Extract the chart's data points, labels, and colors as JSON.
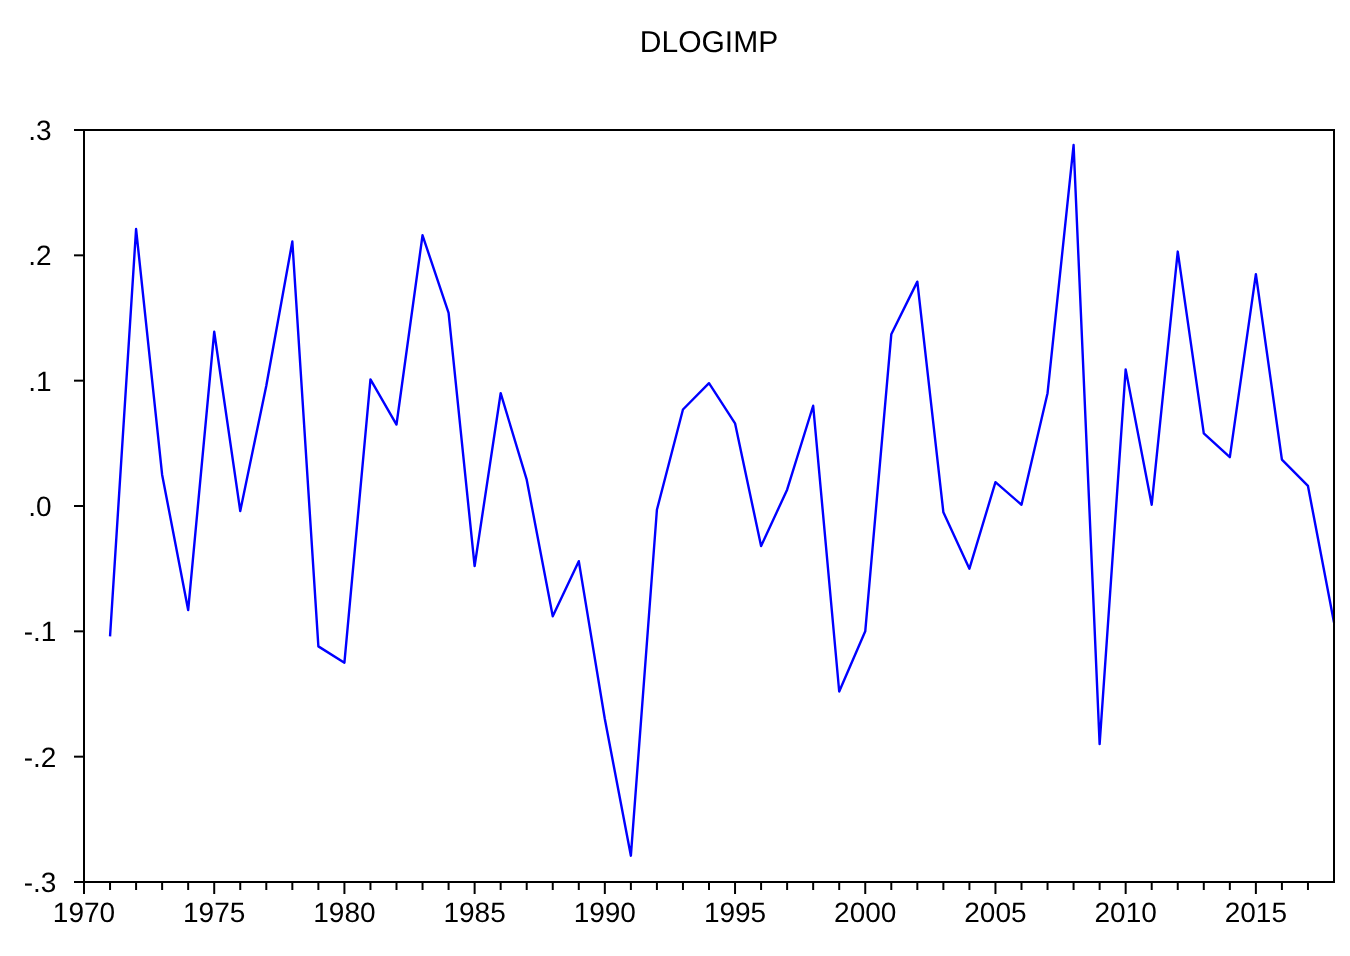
{
  "chart_data": {
    "type": "line",
    "title": "DLOGIMP",
    "x": [
      1971,
      1972,
      1973,
      1974,
      1975,
      1976,
      1977,
      1978,
      1979,
      1980,
      1981,
      1982,
      1983,
      1984,
      1985,
      1986,
      1987,
      1988,
      1989,
      1990,
      1991,
      1992,
      1993,
      1994,
      1995,
      1996,
      1997,
      1998,
      1999,
      2000,
      2001,
      2002,
      2003,
      2004,
      2005,
      2006,
      2007,
      2008,
      2009,
      2010,
      2011,
      2012,
      2013,
      2014,
      2015,
      2016,
      2017,
      2018
    ],
    "series": [
      {
        "color": "#0000ff",
        "values": [
          -0.104,
          0.221,
          0.025,
          -0.083,
          0.139,
          -0.004,
          0.096,
          0.211,
          -0.112,
          -0.125,
          0.101,
          0.065,
          0.216,
          0.154,
          -0.048,
          0.09,
          0.021,
          -0.088,
          -0.044,
          -0.17,
          -0.279,
          -0.003,
          0.077,
          0.098,
          0.066,
          -0.032,
          0.013,
          0.08,
          -0.148,
          -0.1,
          0.137,
          0.179,
          -0.005,
          -0.05,
          0.019,
          0.001,
          0.09,
          0.288,
          -0.19,
          0.109,
          0.001,
          0.203,
          0.058,
          0.039,
          0.185,
          0.037,
          0.016,
          -0.093
        ]
      }
    ],
    "xlim": [
      1970,
      2018
    ],
    "xticks": [
      1970,
      {
        "value": 1971,
        "label": null
      },
      {
        "value": 1972,
        "label": null
      },
      {
        "value": 1973,
        "label": null
      },
      {
        "value": 1974,
        "label": null
      },
      1975,
      {
        "value": 1976,
        "label": null
      },
      {
        "value": 1977,
        "label": null
      },
      {
        "value": 1978,
        "label": null
      },
      {
        "value": 1979,
        "label": null
      },
      1980,
      {
        "value": 1981,
        "label": null
      },
      {
        "value": 1982,
        "label": null
      },
      {
        "value": 1983,
        "label": null
      },
      {
        "value": 1984,
        "label": null
      },
      1985,
      {
        "value": 1986,
        "label": null
      },
      {
        "value": 1987,
        "label": null
      },
      {
        "value": 1988,
        "label": null
      },
      {
        "value": 1989,
        "label": null
      },
      1990,
      {
        "value": 1991,
        "label": null
      },
      {
        "value": 1992,
        "label": null
      },
      {
        "value": 1993,
        "label": null
      },
      {
        "value": 1994,
        "label": null
      },
      1995,
      {
        "value": 1996,
        "label": null
      },
      {
        "value": 1997,
        "label": null
      },
      {
        "value": 1998,
        "label": null
      },
      {
        "value": 1999,
        "label": null
      },
      2000,
      {
        "value": 2001,
        "label": null
      },
      {
        "value": 2002,
        "label": null
      },
      {
        "value": 2003,
        "label": null
      },
      {
        "value": 2004,
        "label": null
      },
      2005,
      {
        "value": 2006,
        "label": null
      },
      {
        "value": 2007,
        "label": null
      },
      {
        "value": 2008,
        "label": null
      },
      {
        "value": 2009,
        "label": null
      },
      2010,
      {
        "value": 2011,
        "label": null
      },
      {
        "value": 2012,
        "label": null
      },
      {
        "value": 2013,
        "label": null
      },
      {
        "value": 2014,
        "label": null
      },
      2015,
      {
        "value": 2016,
        "label": null
      },
      {
        "value": 2017,
        "label": null
      }
    ],
    "ylim": [
      -0.3,
      0.3
    ],
    "yticks": [
      {
        "value": -0.3,
        "label": "-.3"
      },
      {
        "value": -0.2,
        "label": "-.2"
      },
      {
        "value": -0.1,
        "label": "-.1"
      },
      {
        "value": 0,
        "label": ".0"
      },
      {
        "value": 0.1,
        "label": ".1"
      },
      {
        "value": 0.2,
        "label": ".2"
      },
      {
        "value": 0.3,
        "label": ".3"
      }
    ],
    "grid": false,
    "marker": "none",
    "line_style": "solid"
  }
}
